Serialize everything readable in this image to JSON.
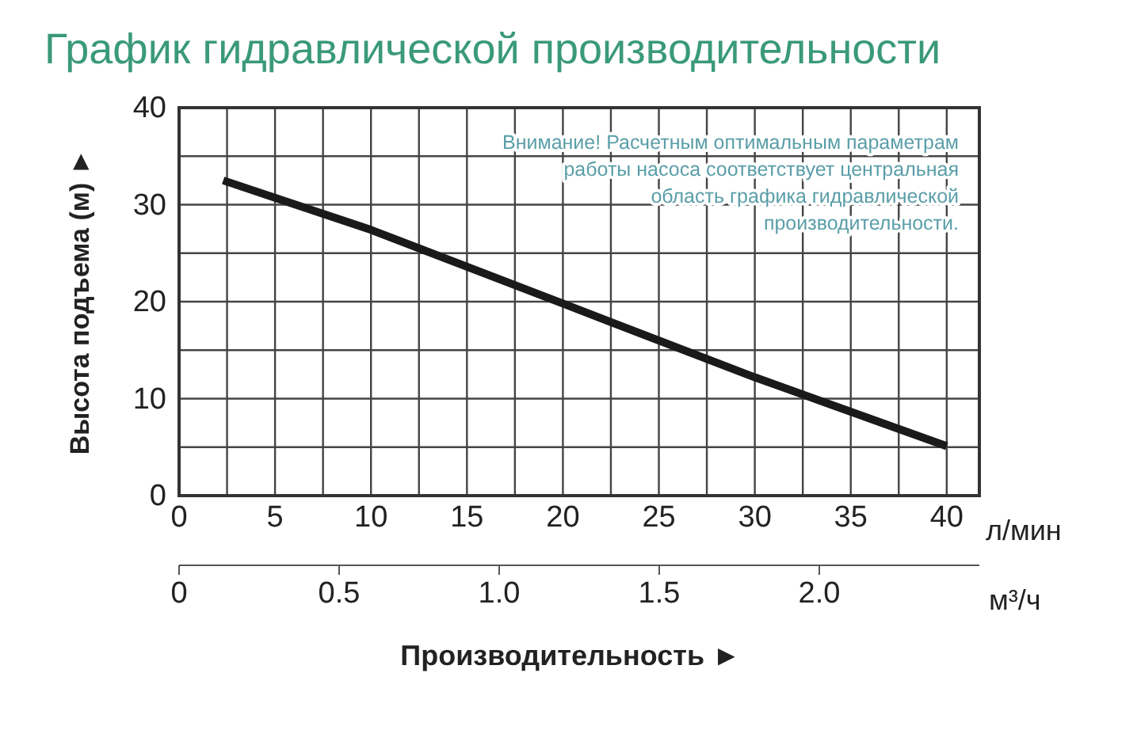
{
  "chart_data": {
    "type": "line",
    "title": "График гидравлической производительности",
    "xlabel": "Производительность ►",
    "ylabel": "Высота подъема (м) ►",
    "x2label": "м³/ч",
    "annotations": [
      "л/мин",
      "Внимание! Расчетным оптимальным параметрам работы насоса соответствует центральная область графика гидравлической производительности."
    ],
    "x": [
      2.3,
      10,
      20,
      30,
      40
    ],
    "series": [
      {
        "color": "#1a1a1a",
        "values": [
          32.5,
          27.4,
          19.8,
          12.2,
          5.1
        ]
      }
    ],
    "xlim": [
      0,
      41.7
    ],
    "xticks": [
      0,
      {
        "value": 2.5,
        "label": null
      },
      5,
      {
        "value": 7.5,
        "label": null
      },
      10,
      {
        "value": 12.5,
        "label": null
      },
      15,
      {
        "value": 17.5,
        "label": null
      },
      20,
      {
        "value": 22.5,
        "label": null
      },
      25,
      {
        "value": 27.5,
        "label": null
      },
      30,
      {
        "value": 32.5,
        "label": null
      },
      35,
      {
        "value": 37.5,
        "label": null
      },
      40
    ],
    "ylim": [
      0,
      40
    ],
    "yticks": [
      0,
      {
        "value": 5,
        "label": null
      },
      10,
      {
        "value": 15,
        "label": null
      },
      20,
      {
        "value": 25,
        "label": null
      },
      30,
      {
        "value": 35,
        "label": null
      },
      40
    ],
    "x2lim": [
      0,
      2.5
    ],
    "x2ticks": [
      0,
      0.5,
      {
        "value": 1,
        "label": "1.0"
      },
      1.5,
      {
        "value": 2,
        "label": "2.0"
      }
    ],
    "grid": true,
    "marker": "none",
    "line_style": "solid"
  }
}
